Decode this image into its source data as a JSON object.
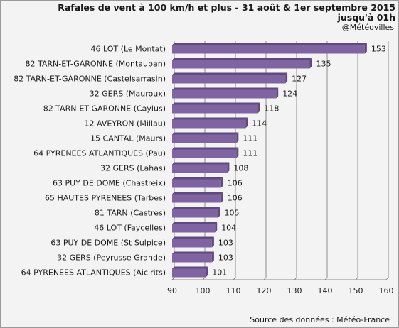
{
  "header": {
    "title_line1": "Rafales de vent à 100 km/h et plus - 31 août  & 1er septembre 2015",
    "title_line2": "jusqu'à 01h",
    "credit": "@Météovilles"
  },
  "footer": {
    "source": "Source des données : Météo-France"
  },
  "colors": {
    "bar": "#8064a2",
    "bar_dark": "#5f4a7e",
    "grid": "#8c8c8c",
    "background": "#f3f3f3"
  },
  "chart_data": {
    "type": "bar",
    "orientation": "horizontal",
    "title": "Rafales de vent à 100 km/h et plus - 31 août  & 1er septembre 2015 jusqu'à 01h",
    "categories": [
      "46 LOT (Le Montat)",
      "82 TARN-ET-GARONNE (Montauban)",
      "82 TARN-ET-GARONNE (Castelsarrasin)",
      "32 GERS (Mauroux)",
      "82 TARN-ET-GARONNE (Caylus)",
      "12 AVEYRON (Millau)",
      "15 CANTAL (Maurs)",
      "64 PYRENEES ATLANTIQUES (Pau)",
      "32 GERS (Lahas)",
      "63 PUY DE DOME (Chastreix)",
      "65 HAUTES PYRENEES (Tarbes)",
      "81 TARN (Castres)",
      "46 LOT (Faycelles)",
      "63 PUY DE DOME (St Sulpice)",
      "32 GERS (Peyrusse Grande)",
      "64 PYRENEES ATLANTIQUES (Aicirits)"
    ],
    "values": [
      153,
      135,
      127,
      124,
      118,
      114,
      111,
      111,
      108,
      106,
      106,
      105,
      104,
      103,
      103,
      101
    ],
    "xlim": [
      90,
      160
    ],
    "xticks": [
      "90",
      "100",
      "110",
      "120",
      "130",
      "140",
      "150",
      "160"
    ],
    "xlabel": "",
    "ylabel": "",
    "grid": true,
    "data_labels": true
  }
}
